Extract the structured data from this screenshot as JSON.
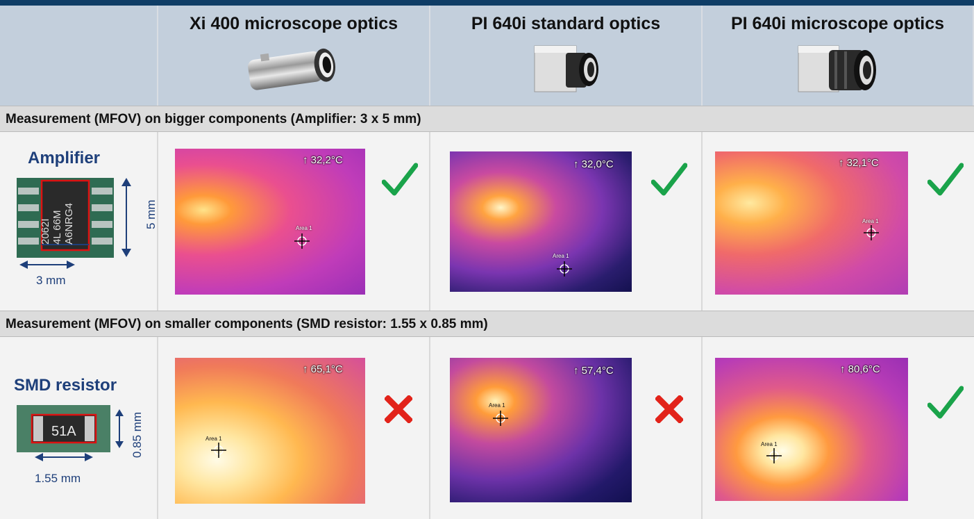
{
  "header": {
    "col1": "Xi 400 microscope optics",
    "col2": "PI 640i standard optics",
    "col3": "PI 640i microscope optics"
  },
  "sections": [
    {
      "title": "Measurement (MFOV) on bigger components (Amplifier: 3 x 5 mm)",
      "component": "Amplifier",
      "chip_text": [
        "2062I",
        "4L 66M",
        "A6NRG4"
      ],
      "dim_height": "5 mm",
      "dim_width": "3 mm",
      "readings": [
        "↑ 32,2°C",
        "↑ 32,0°C",
        "↑ 32,1°C"
      ],
      "results": [
        "check",
        "check",
        "check"
      ]
    },
    {
      "title": "Measurement (MFOV) on smaller components (SMD resistor: 1.55 x 0.85 mm)",
      "component": "SMD resistor",
      "chip_text": [
        "51A"
      ],
      "dim_height": "0.85 mm",
      "dim_width": "1.55 mm",
      "readings": [
        "↑ 65,1°C",
        "↑ 57,4°C",
        "↑ 80,6°C"
      ],
      "results": [
        "cross",
        "cross",
        "check"
      ]
    }
  ],
  "area_label": "Area 1",
  "icons": {
    "check": "checkmark-icon",
    "cross": "x-mark-icon",
    "crosshair": "crosshair-icon"
  },
  "colors": {
    "check": "#1aa34a",
    "cross": "#e2231a",
    "label": "#1e3f7a",
    "topbar": "#0f3d66"
  }
}
